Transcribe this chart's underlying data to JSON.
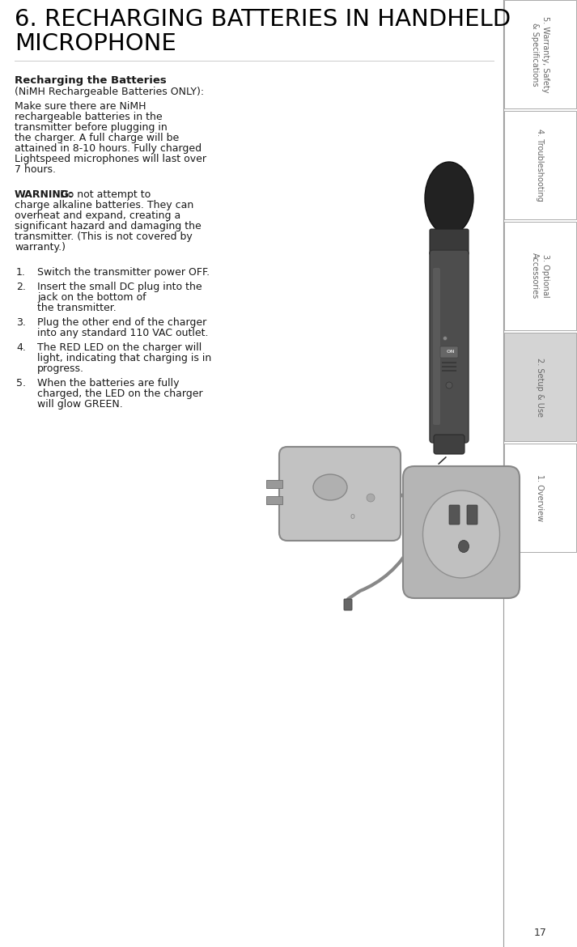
{
  "title_line1": "6. RECHARGING BATTERIES IN HANDHELD",
  "title_line2": "MICROPHONE",
  "title_fontsize": 21,
  "title_color": "#000000",
  "bg_color": "#ffffff",
  "sidebar_tabs": [
    {
      "label": "5. Warranty, Safety\n& Specifications",
      "active": false,
      "color": "#ffffff"
    },
    {
      "label": "4. Troubleshooting",
      "active": false,
      "color": "#ffffff"
    },
    {
      "label": "3. Optional\nAccessories",
      "active": false,
      "color": "#ffffff"
    },
    {
      "label": "2. Setup & Use",
      "active": true,
      "color": "#d4d4d4"
    },
    {
      "label": "1. Overview",
      "active": false,
      "color": "#ffffff"
    }
  ],
  "page_number": "17",
  "section_title": "Recharging the Batteries",
  "section_subtitle": "(NiMH Rechargeable Batteries ONLY):",
  "body_text": "Make sure there are NiMH\nrechargeable batteries in the\ntransmitter before plugging in\nthe charger. A full charge will be\nattained in 8-10 hours. Fully charged\nLightspeed microphones will last over\n7 hours.",
  "warning_bold": "WARNING:",
  "warning_text": " Do not attempt to\ncharge alkaline batteries. They can\noverheat and expand, creating a\nsignificant hazard and damaging the\ntransmitter. (This is not covered by\nwarranty.)",
  "steps": [
    "Switch the transmitter power OFF.",
    "Insert the small DC plug into the\njack on the bottom of\nthe transmitter.",
    "Plug the other end of the charger\ninto any standard 110 VAC outlet.",
    "The RED LED on the charger will\nlight, indicating that charging is in\nprogress.",
    "When the batteries are fully\ncharged, the LED on the charger\nwill glow GREEN."
  ],
  "text_color": "#1a1a1a",
  "sidebar_text_color": "#666666",
  "body_fontsize": 9.0,
  "step_fontsize": 9.0,
  "sidebar_fontsize": 7.0,
  "divider_color": "#999999"
}
